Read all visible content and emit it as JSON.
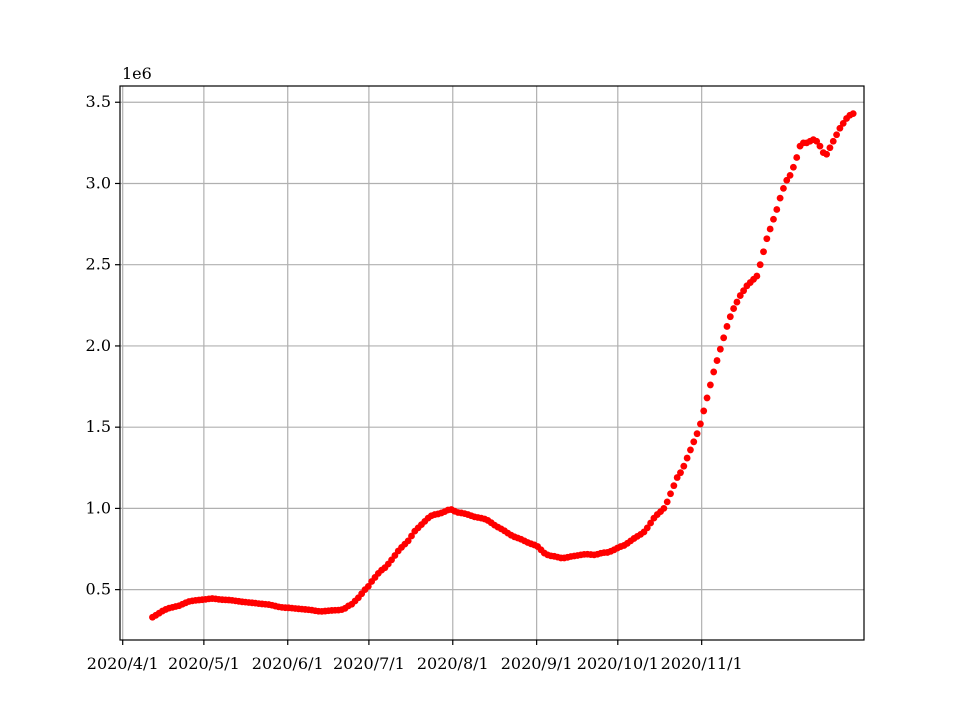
{
  "chart_data": {
    "type": "scatter",
    "title": "",
    "xlabel": "",
    "ylabel": "",
    "y_offset_label": "1e6",
    "xlim": [
      "2020-03-31",
      "2020-12-31"
    ],
    "ylim": [
      0.19,
      3.6
    ],
    "grid": true,
    "marker_color": "#ff0000",
    "x_ticks": [
      {
        "date": "2020-04-01",
        "label": "2020/4/1"
      },
      {
        "date": "2020-05-01",
        "label": "2020/5/1"
      },
      {
        "date": "2020-06-01",
        "label": "2020/6/1"
      },
      {
        "date": "2020-07-01",
        "label": "2020/7/1"
      },
      {
        "date": "2020-08-01",
        "label": "2020/8/1"
      },
      {
        "date": "2020-09-01",
        "label": "2020/9/1"
      },
      {
        "date": "2020-10-01",
        "label": "2020/10/1"
      },
      {
        "date": "2020-11-01",
        "label": "2020/11/1"
      }
    ],
    "y_ticks": [
      {
        "value": 0.5,
        "label": "0.5"
      },
      {
        "value": 1.0,
        "label": "1.0"
      },
      {
        "value": 1.5,
        "label": "1.5"
      },
      {
        "value": 2.0,
        "label": "2.0"
      },
      {
        "value": 2.5,
        "label": "2.5"
      },
      {
        "value": 3.0,
        "label": "3.0"
      },
      {
        "value": 3.5,
        "label": "3.5"
      }
    ],
    "series": [
      {
        "date_range": [
          "2020-04-12",
          "2020-12-27"
        ],
        "values": [
          0.33,
          0.342,
          0.355,
          0.368,
          0.378,
          0.386,
          0.391,
          0.396,
          0.401,
          0.41,
          0.419,
          0.427,
          0.431,
          0.434,
          0.436,
          0.438,
          0.44,
          0.443,
          0.445,
          0.443,
          0.44,
          0.438,
          0.437,
          0.436,
          0.434,
          0.431,
          0.428,
          0.425,
          0.423,
          0.421,
          0.419,
          0.417,
          0.414,
          0.412,
          0.41,
          0.408,
          0.404,
          0.399,
          0.394,
          0.391,
          0.389,
          0.388,
          0.386,
          0.384,
          0.382,
          0.38,
          0.378,
          0.376,
          0.374,
          0.37,
          0.367,
          0.366,
          0.368,
          0.37,
          0.372,
          0.373,
          0.374,
          0.377,
          0.385,
          0.4,
          0.41,
          0.43,
          0.45,
          0.475,
          0.5,
          0.52,
          0.55,
          0.575,
          0.6,
          0.62,
          0.635,
          0.658,
          0.683,
          0.71,
          0.738,
          0.76,
          0.78,
          0.8,
          0.83,
          0.86,
          0.88,
          0.9,
          0.92,
          0.94,
          0.955,
          0.962,
          0.966,
          0.972,
          0.98,
          0.99,
          0.993,
          0.983,
          0.975,
          0.972,
          0.968,
          0.962,
          0.955,
          0.948,
          0.944,
          0.94,
          0.935,
          0.926,
          0.912,
          0.897,
          0.885,
          0.874,
          0.862,
          0.848,
          0.835,
          0.825,
          0.818,
          0.81,
          0.8,
          0.79,
          0.782,
          0.775,
          0.765,
          0.745,
          0.725,
          0.714,
          0.708,
          0.705,
          0.7,
          0.695,
          0.695,
          0.699,
          0.704,
          0.707,
          0.71,
          0.714,
          0.717,
          0.718,
          0.716,
          0.714,
          0.718,
          0.724,
          0.728,
          0.729,
          0.736,
          0.745,
          0.756,
          0.765,
          0.772,
          0.785,
          0.8,
          0.815,
          0.828,
          0.84,
          0.855,
          0.88,
          0.91,
          0.94,
          0.962,
          0.98,
          1.0,
          1.04,
          1.09,
          1.14,
          1.19,
          1.22,
          1.26,
          1.31,
          1.36,
          1.41,
          1.46,
          1.52,
          1.6,
          1.68,
          1.76,
          1.84,
          1.91,
          1.98,
          2.05,
          2.12,
          2.18,
          2.23,
          2.27,
          2.31,
          2.34,
          2.37,
          2.39,
          2.41,
          2.43,
          2.5,
          2.58,
          2.66,
          2.72,
          2.78,
          2.84,
          2.91,
          2.97,
          3.02,
          3.05,
          3.1,
          3.16,
          3.23,
          3.25,
          3.25,
          3.26,
          3.27,
          3.26,
          3.23,
          3.19,
          3.18,
          3.22,
          3.26,
          3.3,
          3.34,
          3.37,
          3.4,
          3.42,
          3.43
        ]
      }
    ]
  }
}
